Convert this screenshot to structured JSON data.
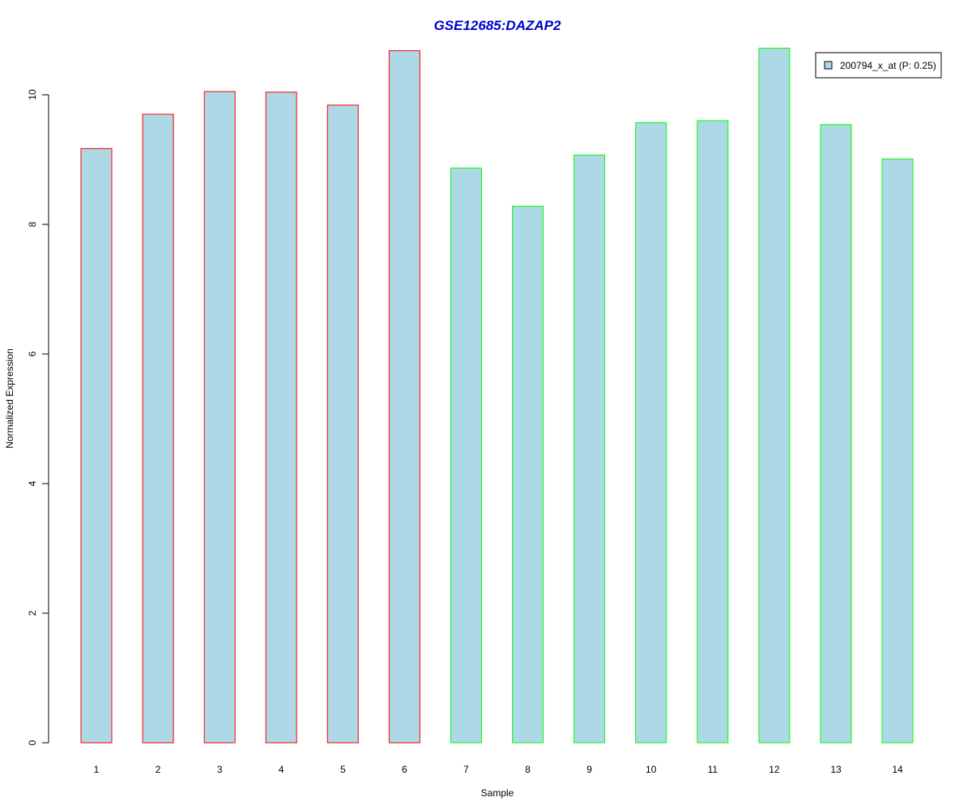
{
  "chart_data": {
    "type": "bar",
    "title": "GSE12685:DAZAP2",
    "title_color": "#0000cd",
    "xlabel": "Sample",
    "ylabel": "Normalized Expression",
    "categories": [
      "1",
      "2",
      "3",
      "4",
      "5",
      "6",
      "7",
      "8",
      "9",
      "10",
      "11",
      "12",
      "13",
      "14"
    ],
    "values": [
      9.17,
      9.7,
      10.05,
      10.04,
      9.84,
      10.68,
      8.87,
      8.28,
      9.07,
      9.57,
      9.6,
      10.72,
      9.54,
      9.01
    ],
    "groups": [
      "red",
      "red",
      "red",
      "red",
      "red",
      "red",
      "green",
      "green",
      "green",
      "green",
      "green",
      "green",
      "green",
      "green"
    ],
    "fill_color": "#add8e6",
    "group_colors": {
      "red": "#ff0000",
      "green": "#00ff00"
    },
    "ylim": [
      0,
      10
    ],
    "yticks": [
      0,
      2,
      4,
      6,
      8,
      10
    ],
    "grid": false,
    "legend": {
      "position": "top-right",
      "entries": [
        {
          "label": "200794_x_at (P: 0.25)",
          "color": "#add8e6"
        }
      ]
    }
  }
}
